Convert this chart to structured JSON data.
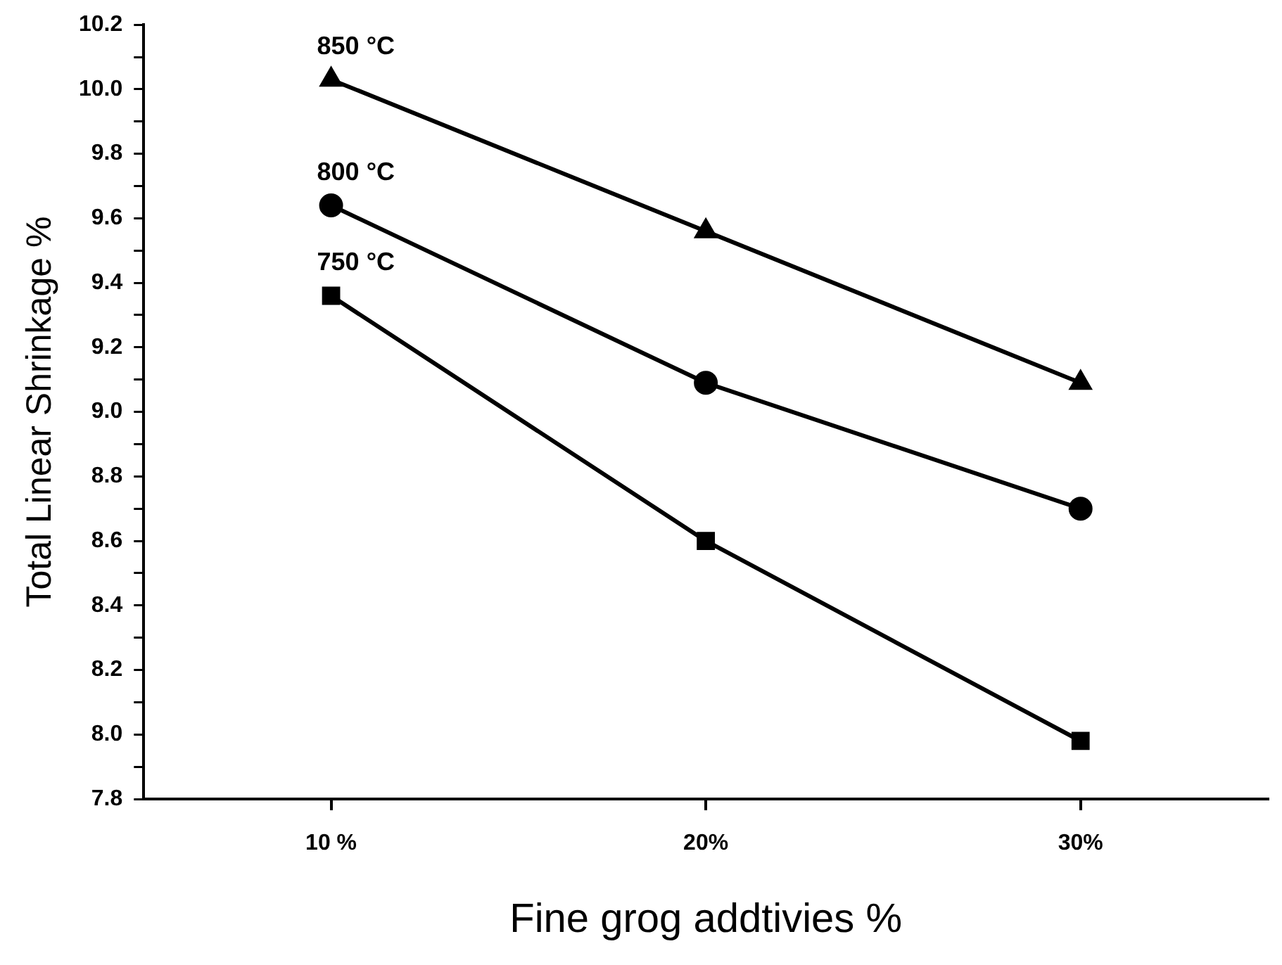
{
  "chart_data": {
    "type": "line",
    "xlabel": "Fine grog addtivies %",
    "ylabel": "Total Linear Shrinkage %",
    "categories": [
      "10 %",
      "20%",
      "30%"
    ],
    "ylim": [
      7.8,
      10.2
    ],
    "yticks": [
      7.8,
      {
        "value": 7.9,
        "label": null
      },
      {
        "value": 8,
        "label": "8.0"
      },
      {
        "value": 8.1,
        "label": null
      },
      8.2,
      {
        "value": 8.3,
        "label": null
      },
      8.4,
      {
        "value": 8.5,
        "label": null
      },
      8.6,
      {
        "value": 8.7,
        "label": null
      },
      8.8,
      {
        "value": 8.9,
        "label": null
      },
      {
        "value": 9,
        "label": "9.0"
      },
      {
        "value": 9.1,
        "label": null
      },
      9.2,
      {
        "value": 9.3,
        "label": null
      },
      9.4,
      {
        "value": 9.5,
        "label": null
      },
      9.6,
      {
        "value": 9.7,
        "label": null
      },
      9.8,
      {
        "value": 9.9,
        "label": null
      },
      {
        "value": 10,
        "label": "10.0"
      },
      {
        "value": 10.1,
        "label": null
      },
      10.2
    ],
    "grid": false,
    "legend": false,
    "line_style": "solid",
    "series": [
      {
        "name": "850 °C",
        "color": "#000000",
        "marker": "triangle",
        "values": [
          10.03,
          9.56,
          9.09
        ]
      },
      {
        "name": "800 °C",
        "color": "#000000",
        "marker": "circle",
        "values": [
          9.64,
          9.09,
          8.7
        ]
      },
      {
        "name": "750 °C",
        "color": "#000000",
        "marker": "square",
        "values": [
          9.36,
          8.6,
          7.98
        ]
      }
    ]
  }
}
